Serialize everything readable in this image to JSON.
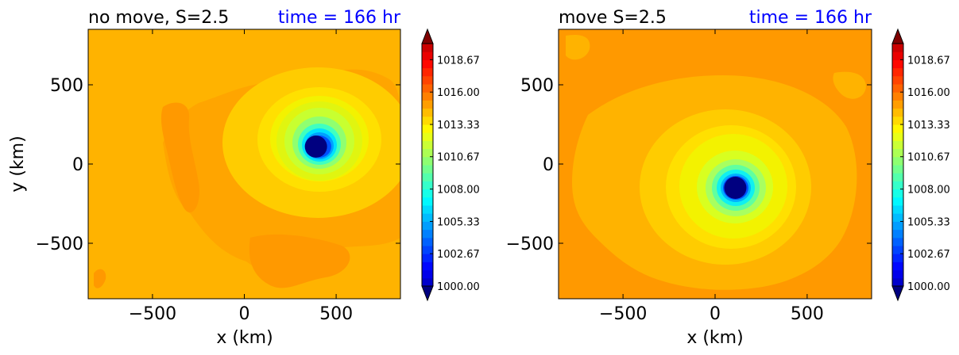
{
  "chart_data": [
    {
      "type": "contourf",
      "title_left": "no move, S=2.5",
      "title_right": "time = 166 hr",
      "title_right_color": "#0000ff",
      "xlabel": "x (km)",
      "ylabel": "y (km)",
      "xlim": [
        -850,
        850
      ],
      "ylim": [
        -850,
        850
      ],
      "xticks": [
        -500,
        0,
        500
      ],
      "yticks": [
        -500,
        0,
        500
      ],
      "xtick_labels": [
        "−500",
        "0",
        "500"
      ],
      "ytick_labels": [
        "−500",
        "0",
        "500"
      ],
      "background_level_color": "#ffb300",
      "low_center": [
        390,
        110
      ],
      "low_min_value": 1000.0,
      "colorbar": {
        "vmin": 1000.0,
        "vmax": 1020.0,
        "extend": "both",
        "ticks": [
          1000.0,
          1002.67,
          1005.33,
          1008.0,
          1010.67,
          1013.33,
          1016.0,
          1018.67
        ],
        "tick_labels": [
          "1000.00",
          "1002.67",
          "1005.33",
          "1008.00",
          "1010.67",
          "1013.33",
          "1016.00",
          "1018.67"
        ]
      }
    },
    {
      "type": "contourf",
      "title_left": "move S=2.5",
      "title_right": "time = 166 hr",
      "title_right_color": "#0000ff",
      "xlabel": "x (km)",
      "ylabel": "",
      "xlim": [
        -850,
        850
      ],
      "ylim": [
        -850,
        850
      ],
      "xticks": [
        -500,
        0,
        500
      ],
      "yticks": [
        -500,
        0,
        500
      ],
      "xtick_labels": [
        "−500",
        "0",
        "500"
      ],
      "ytick_labels": [
        "−500",
        "0",
        "500"
      ],
      "background_level_color": "#ff9900",
      "low_center": [
        110,
        -150
      ],
      "low_min_value": 1000.0,
      "colorbar": {
        "vmin": 1000.0,
        "vmax": 1020.0,
        "extend": "both",
        "ticks": [
          1000.0,
          1002.67,
          1005.33,
          1008.0,
          1010.67,
          1013.33,
          1016.0,
          1018.67
        ],
        "tick_labels": [
          "1000.00",
          "1002.67",
          "1005.33",
          "1008.00",
          "1010.67",
          "1013.33",
          "1016.00",
          "1018.67"
        ]
      }
    }
  ]
}
